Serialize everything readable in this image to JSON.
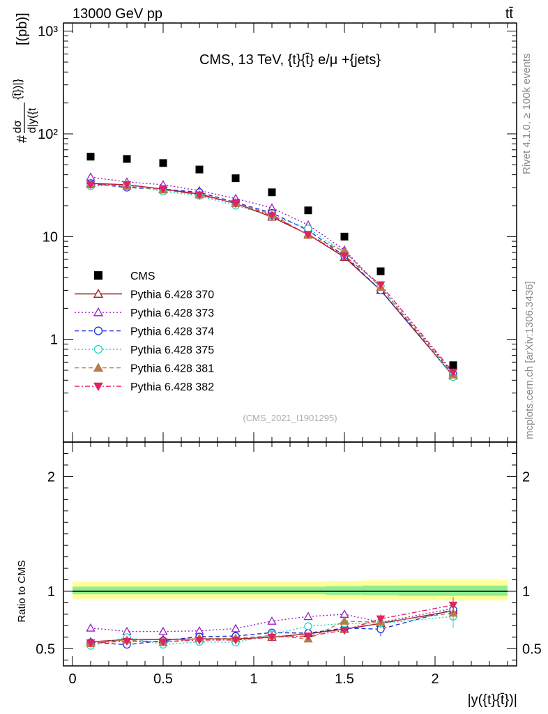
{
  "header": {
    "left": "13000 GeV pp",
    "right": "tt̄"
  },
  "side_labels": {
    "rivet": "Rivet 4.1.0, ≥ 100k events",
    "mcplots": "mcplots.cern.ch [arXiv:1306.3436]"
  },
  "chart_data": [
    {
      "type": "scatter",
      "panel": "main",
      "title": "CMS, 13 TeV, {t}{t̄} e/μ +{jets}",
      "watermark": "(CMS_2021_I1901295)",
      "ylabel": "#dσ/d|y({t}{t̄})|} [(pb)]",
      "ylabel_parts": {
        "prefix": "#",
        "num": "dσ",
        "den": "d|y({t",
        "bar": "{t̄})|}",
        "unit": "[(pb)]"
      },
      "yscale": "log",
      "ylim": [
        0.1,
        1200
      ],
      "xlim": [
        -0.05,
        2.45
      ],
      "y_major_ticks": [
        1,
        10,
        100,
        1000
      ],
      "y_tick_labels": [
        "1",
        "10",
        "10²",
        "10³"
      ],
      "legend_position": "left-middle",
      "x": [
        0.1,
        0.3,
        0.5,
        0.7,
        0.9,
        1.1,
        1.3,
        1.5,
        1.7,
        2.1
      ],
      "series": [
        {
          "name": "CMS",
          "color": "#000000",
          "marker": "square-filled",
          "line": "none",
          "values": [
            60,
            57,
            52,
            45,
            37,
            27,
            18,
            10,
            4.6,
            0.56
          ]
        },
        {
          "name": "Pythia 6.428 370",
          "color": "#9b1c1c",
          "marker": "triangle-open",
          "line": "solid",
          "values": [
            33,
            32,
            29,
            26,
            21,
            15.5,
            10.5,
            6.3,
            3.0,
            0.44
          ]
        },
        {
          "name": "Pythia 6.428 373",
          "color": "#9a1fc4",
          "marker": "triangle-open",
          "line": "dotted",
          "values": [
            38,
            34,
            32,
            28,
            23.5,
            19,
            13,
            7.4,
            3.2,
            0.47
          ]
        },
        {
          "name": "Pythia 6.428 374",
          "color": "#1c2fd8",
          "marker": "circle-open",
          "line": "dashed",
          "values": [
            33,
            30,
            29,
            27,
            21.5,
            17,
            11.5,
            6.5,
            3.0,
            0.46
          ]
        },
        {
          "name": "Pythia 6.428 375",
          "color": "#1dd6c4",
          "marker": "circle-open",
          "line": "dotted",
          "values": [
            31,
            32,
            27.5,
            25,
            20,
            16,
            12,
            7.0,
            3.3,
            0.43
          ]
        },
        {
          "name": "Pythia 6.428 381",
          "color": "#b87c4a",
          "marker": "triangle-filled",
          "line": "dashed",
          "values": [
            32,
            31,
            28.5,
            25.5,
            21,
            16.5,
            10.3,
            7.2,
            3.2,
            0.45
          ]
        },
        {
          "name": "Pythia 6.428 382",
          "color": "#e0245e",
          "marker": "triangledown-filled",
          "line": "dashdot",
          "values": [
            32,
            32,
            29,
            25.5,
            21,
            16,
            10.5,
            6.5,
            3.4,
            0.48
          ]
        }
      ]
    },
    {
      "type": "scatter",
      "panel": "ratio",
      "ylabel": "Ratio to CMS",
      "xlabel": "|y({t}{t̄})|",
      "xlim": [
        -0.05,
        2.45
      ],
      "ylim": [
        0.35,
        2.3
      ],
      "x_tick_values": [
        0,
        0.5,
        1,
        1.5,
        2
      ],
      "x_tick_labels": [
        "0",
        "0.5",
        "1",
        "1.5",
        "2"
      ],
      "y_tick_values": [
        0.5,
        1,
        2
      ],
      "y_tick_labels": [
        "0.5",
        "1",
        "2"
      ],
      "band": {
        "edges": [
          0.0,
          0.2,
          0.4,
          0.6,
          0.8,
          1.0,
          1.2,
          1.4,
          1.6,
          1.8,
          2.4
        ],
        "inner_lo": [
          0.975,
          0.975,
          0.975,
          0.975,
          0.975,
          0.975,
          0.975,
          0.97,
          0.965,
          0.96
        ],
        "inner_hi": [
          1.04,
          1.04,
          1.04,
          1.04,
          1.04,
          1.04,
          1.04,
          1.045,
          1.05,
          1.05
        ],
        "outer_lo": [
          0.935,
          0.935,
          0.935,
          0.935,
          0.935,
          0.935,
          0.935,
          0.93,
          0.925,
          0.92
        ],
        "outer_hi": [
          1.085,
          1.085,
          1.085,
          1.085,
          1.085,
          1.085,
          1.085,
          1.09,
          1.095,
          1.1
        ],
        "inner_color": "#90ee90",
        "outer_color": "#ffff99"
      },
      "x": [
        0.1,
        0.3,
        0.5,
        0.7,
        0.9,
        1.1,
        1.3,
        1.5,
        1.7,
        2.1
      ],
      "series": [
        {
          "name": "Pythia 6.428 370",
          "color": "#9b1c1c",
          "marker": "triangle-open",
          "line": "solid",
          "values": [
            0.56,
            0.58,
            0.58,
            0.585,
            0.585,
            0.6,
            0.63,
            0.67,
            0.72,
            0.83
          ],
          "err": [
            0.015,
            0.015,
            0.015,
            0.015,
            0.015,
            0.02,
            0.025,
            0.03,
            0.04,
            0.06
          ]
        },
        {
          "name": "Pythia 6.428 373",
          "color": "#9a1fc4",
          "marker": "triangle-open",
          "line": "dotted",
          "values": [
            0.68,
            0.65,
            0.65,
            0.655,
            0.675,
            0.74,
            0.78,
            0.8,
            0.73,
            0.85
          ],
          "err": [
            0.015,
            0.015,
            0.015,
            0.015,
            0.015,
            0.02,
            0.025,
            0.03,
            0.04,
            0.06
          ]
        },
        {
          "name": "Pythia 6.428 374",
          "color": "#1c2fd8",
          "marker": "circle-open",
          "line": "dashed",
          "values": [
            0.555,
            0.535,
            0.57,
            0.605,
            0.61,
            0.64,
            0.635,
            0.68,
            0.67,
            0.84
          ],
          "err": [
            0.015,
            0.015,
            0.015,
            0.015,
            0.015,
            0.02,
            0.025,
            0.03,
            0.06,
            0.07
          ]
        },
        {
          "name": "Pythia 6.428 375",
          "color": "#1dd6c4",
          "marker": "circle-open",
          "line": "dotted",
          "values": [
            0.525,
            0.6,
            0.535,
            0.56,
            0.555,
            0.625,
            0.695,
            0.72,
            0.72,
            0.78
          ],
          "err": [
            0.015,
            0.015,
            0.015,
            0.015,
            0.015,
            0.02,
            0.025,
            0.03,
            0.04,
            0.1
          ]
        },
        {
          "name": "Pythia 6.428 381",
          "color": "#b87c4a",
          "marker": "triangle-filled",
          "line": "dashed",
          "values": [
            0.545,
            0.575,
            0.555,
            0.59,
            0.59,
            0.615,
            0.585,
            0.74,
            0.73,
            0.81
          ],
          "err": [
            0.015,
            0.015,
            0.015,
            0.015,
            0.015,
            0.02,
            0.025,
            0.03,
            0.04,
            0.06
          ]
        },
        {
          "name": "Pythia 6.428 382",
          "color": "#e0245e",
          "marker": "triangledown-filled",
          "line": "dashdot",
          "values": [
            0.55,
            0.565,
            0.56,
            0.575,
            0.575,
            0.6,
            0.61,
            0.66,
            0.76,
            0.88
          ],
          "err": [
            0.015,
            0.015,
            0.015,
            0.015,
            0.015,
            0.02,
            0.025,
            0.03,
            0.04,
            0.07
          ]
        }
      ]
    }
  ]
}
